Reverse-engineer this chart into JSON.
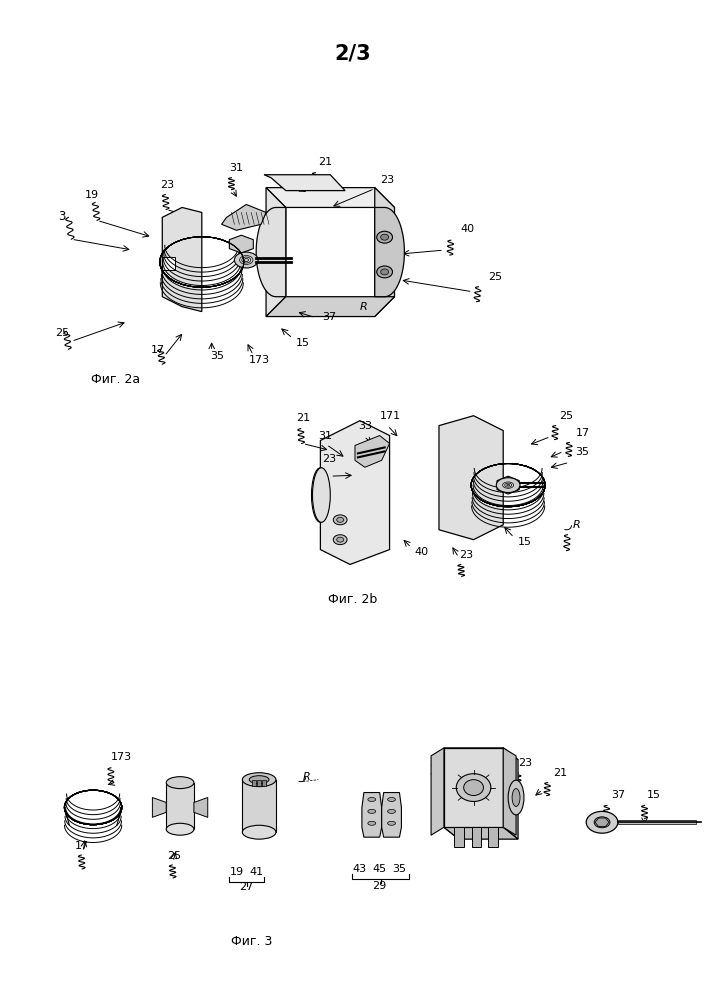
{
  "title": "2/3",
  "title_fontsize": 15,
  "title_fontweight": "bold",
  "background_color": "#ffffff",
  "fig_width": 7.07,
  "fig_height": 10.0,
  "caption1": "Фиг. 2a",
  "caption2": "Фиг. 2b",
  "caption3": "Фиг. 3",
  "lf": 8.0
}
